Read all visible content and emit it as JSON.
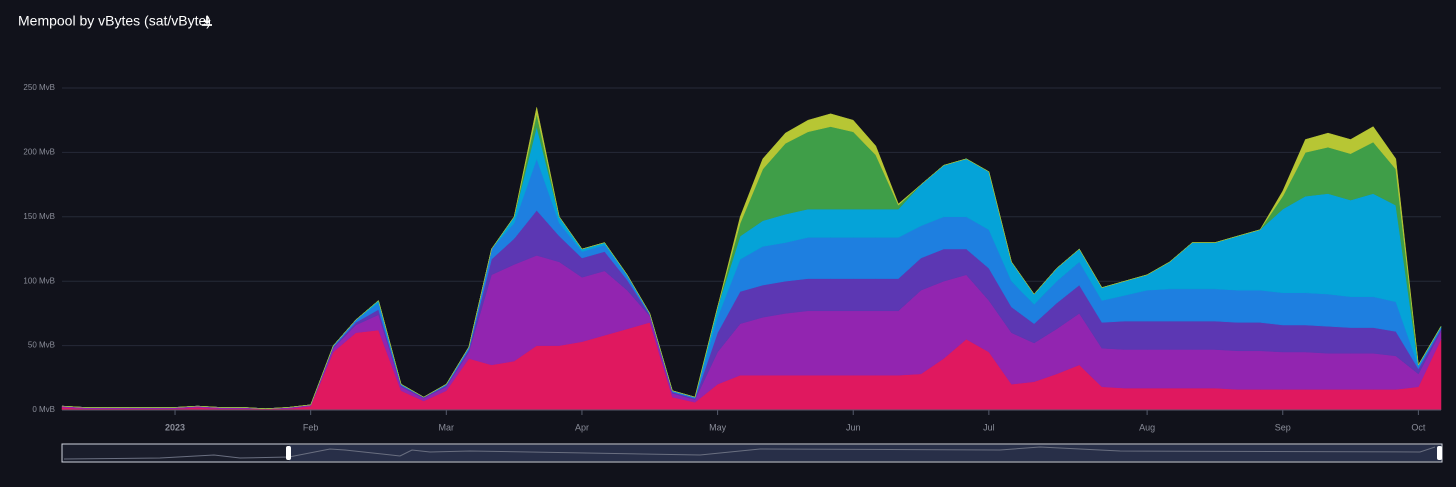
{
  "chart_data": {
    "type": "stacked-area",
    "title": "Mempool by vBytes (sat/vByte)",
    "categories": [
      null,
      null,
      null,
      null,
      null,
      "2023",
      null,
      null,
      null,
      null,
      null,
      "Feb",
      null,
      null,
      null,
      null,
      null,
      "Mar",
      null,
      null,
      null,
      null,
      null,
      "Apr",
      null,
      null,
      null,
      null,
      null,
      "May",
      null,
      null,
      null,
      null,
      null,
      "Jun",
      null,
      null,
      null,
      null,
      null,
      "Jul",
      null,
      null,
      null,
      null,
      null,
      null,
      "Aug",
      null,
      null,
      null,
      null,
      null,
      "Sep",
      null,
      null,
      null,
      null,
      null,
      "Oct",
      null
    ],
    "ylim": [
      0,
      250
    ],
    "yticks": [
      {
        "value": 0,
        "label": "0 MvB"
      },
      {
        "value": 50,
        "label": "50 MvB"
      },
      {
        "value": 100,
        "label": "100 MvB"
      },
      {
        "value": 150,
        "label": "150 MvB"
      },
      {
        "value": 200,
        "label": "200 MvB"
      },
      {
        "value": 250,
        "label": "250 MvB"
      }
    ],
    "grid": true,
    "series": [
      {
        "color": "#e0185f",
        "values": [
          2,
          1,
          1,
          1,
          1,
          1,
          2,
          1,
          1,
          1,
          1,
          3,
          45,
          60,
          62,
          15,
          7,
          15,
          40,
          35,
          38,
          50,
          50,
          53,
          58,
          63,
          68,
          10,
          6,
          20,
          27,
          27,
          27,
          27,
          27,
          27,
          27,
          27,
          28,
          40,
          55,
          45,
          20,
          22,
          28,
          35,
          18,
          17,
          17,
          17,
          17,
          17,
          16,
          16,
          16,
          16,
          16,
          16,
          16,
          16,
          18,
          55
        ]
      },
      {
        "color": "#9225b0",
        "values": [
          1,
          1,
          1,
          1,
          1,
          1,
          1,
          1,
          1,
          0,
          1,
          1,
          3,
          6,
          12,
          3,
          2,
          3,
          5,
          70,
          75,
          70,
          65,
          50,
          50,
          30,
          5,
          3,
          2,
          25,
          40,
          45,
          48,
          50,
          50,
          50,
          50,
          50,
          65,
          60,
          50,
          40,
          40,
          30,
          35,
          40,
          30,
          30,
          30,
          30,
          30,
          30,
          30,
          30,
          29,
          29,
          28,
          28,
          28,
          26,
          10,
          6
        ]
      },
      {
        "color": "#5c37b3",
        "values": [
          0,
          0,
          0,
          0,
          0,
          0,
          0,
          0,
          0,
          0,
          0,
          0,
          1,
          2,
          4,
          1,
          1,
          1,
          2,
          12,
          20,
          35,
          20,
          15,
          15,
          8,
          1,
          1,
          1,
          15,
          25,
          25,
          25,
          25,
          25,
          25,
          25,
          25,
          25,
          25,
          20,
          25,
          20,
          15,
          20,
          22,
          20,
          22,
          22,
          22,
          22,
          22,
          22,
          22,
          21,
          21,
          21,
          20,
          20,
          19,
          4,
          2
        ]
      },
      {
        "color": "#1e7fe0",
        "values": [
          0,
          0,
          0,
          0,
          0,
          0,
          0,
          0,
          0,
          0,
          0,
          0,
          1,
          2,
          5,
          1,
          0,
          1,
          2,
          8,
          12,
          40,
          10,
          5,
          5,
          3,
          1,
          1,
          1,
          12,
          25,
          30,
          30,
          32,
          32,
          32,
          32,
          32,
          25,
          25,
          25,
          30,
          20,
          15,
          17,
          18,
          17,
          20,
          24,
          25,
          25,
          25,
          25,
          25,
          25,
          25,
          25,
          24,
          24,
          23,
          2,
          1
        ]
      },
      {
        "color": "#05a3d8",
        "values": [
          0,
          0,
          0,
          0,
          0,
          0,
          0,
          0,
          0,
          0,
          0,
          0,
          0,
          0,
          2,
          0,
          0,
          0,
          0,
          0,
          5,
          25,
          5,
          2,
          2,
          1,
          0,
          0,
          0,
          8,
          18,
          20,
          22,
          22,
          22,
          22,
          22,
          22,
          32,
          40,
          45,
          45,
          15,
          8,
          10,
          10,
          10,
          11,
          12,
          21,
          36,
          36,
          42,
          47,
          65,
          75,
          78,
          75,
          80,
          75,
          1,
          1
        ]
      },
      {
        "color": "#3f9e48",
        "values": [
          0,
          0,
          0,
          0,
          0,
          0,
          0,
          0,
          0,
          0,
          0,
          0,
          0,
          0,
          0,
          0,
          0,
          0,
          0,
          0,
          0,
          10,
          0,
          0,
          0,
          0,
          0,
          0,
          0,
          0,
          10,
          40,
          55,
          60,
          64,
          60,
          42,
          3,
          0,
          0,
          0,
          0,
          0,
          0,
          0,
          0,
          0,
          0,
          0,
          0,
          0,
          0,
          0,
          0,
          10,
          34,
          36,
          36,
          40,
          28,
          0,
          0
        ]
      },
      {
        "color": "#b7c634",
        "values": [
          0,
          0,
          0,
          0,
          0,
          0,
          0,
          0,
          0,
          0,
          0,
          0,
          0,
          0,
          0,
          0,
          0,
          0,
          0,
          0,
          0,
          5,
          0,
          0,
          0,
          0,
          0,
          0,
          0,
          0,
          5,
          8,
          8,
          9,
          10,
          9,
          7,
          1,
          0,
          0,
          0,
          0,
          0,
          0,
          0,
          0,
          0,
          0,
          0,
          0,
          0,
          0,
          0,
          0,
          4,
          10,
          11,
          11,
          12,
          8,
          0,
          0
        ]
      }
    ]
  }
}
